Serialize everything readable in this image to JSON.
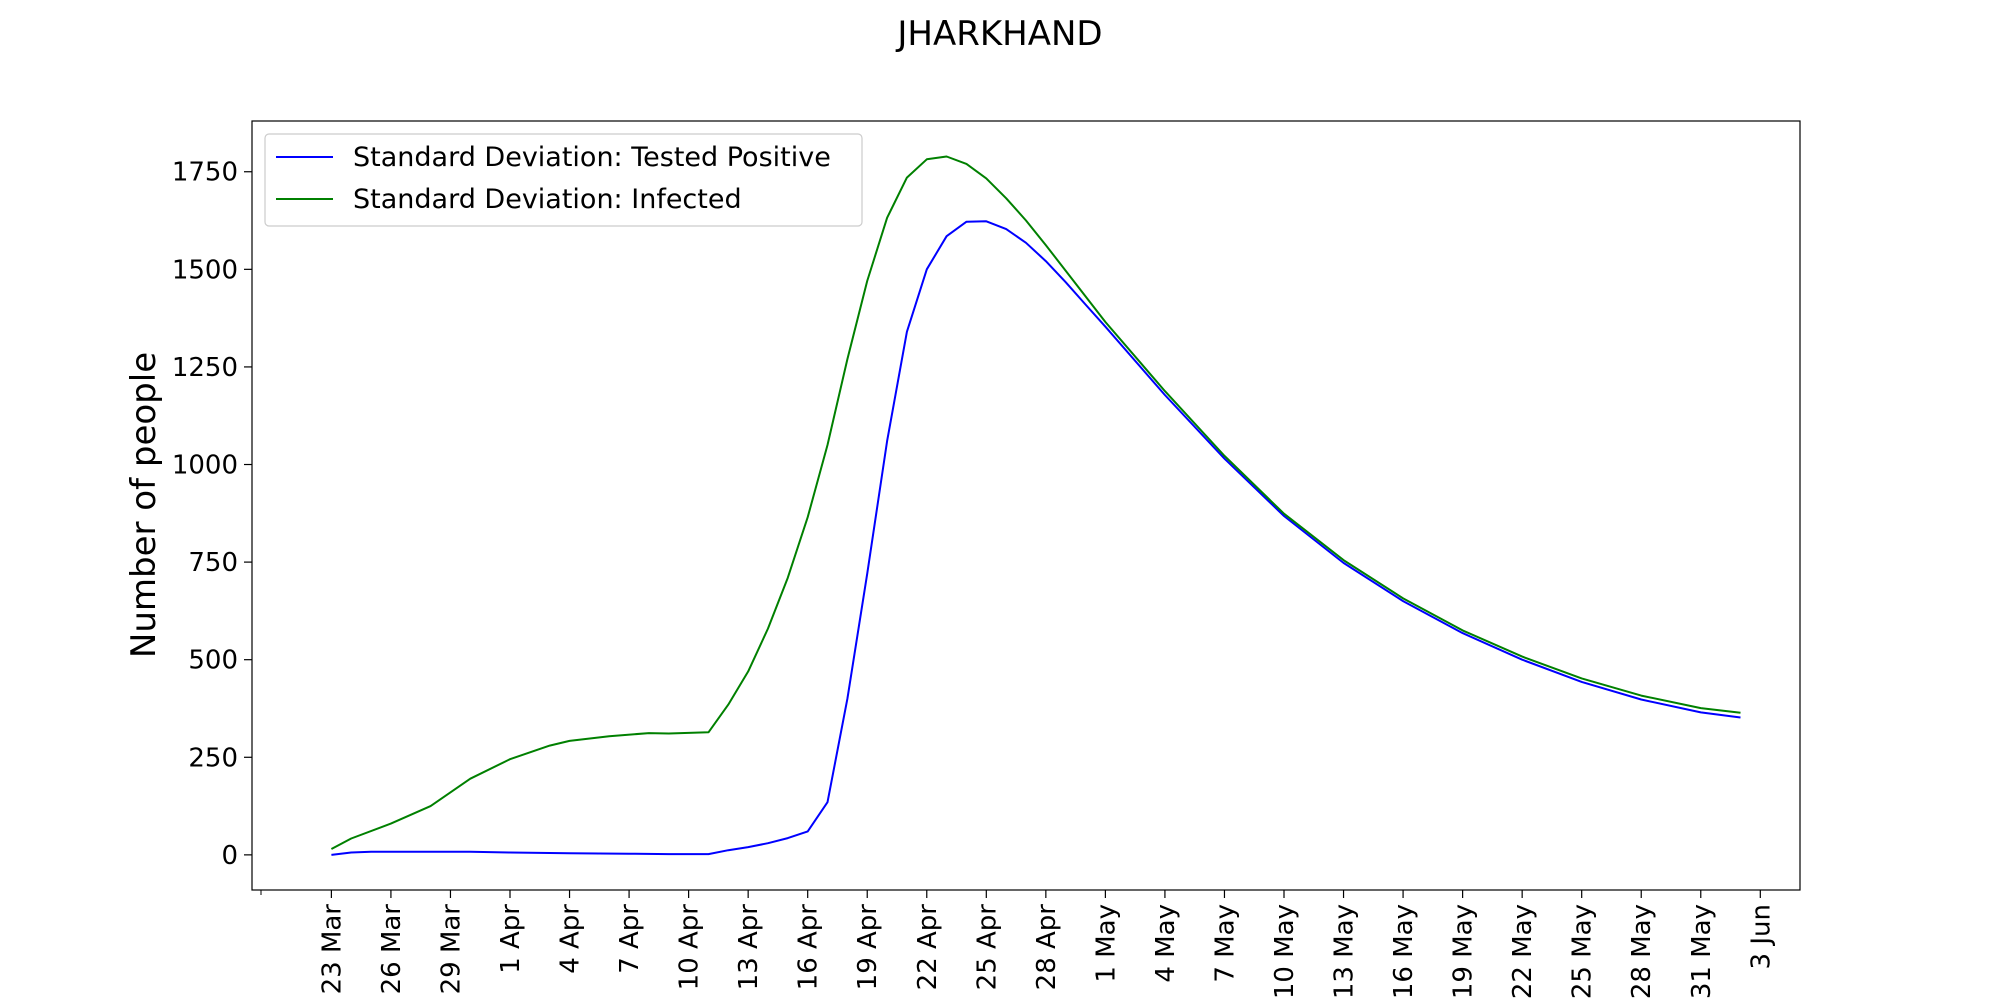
{
  "chart_data": {
    "type": "line",
    "title": "JHARKHAND",
    "xlabel": "",
    "ylabel": "Number of people",
    "ylim": [
      -90,
      1880
    ],
    "xlim": [
      "2020-03-19",
      "2020-06-05"
    ],
    "grid": false,
    "legend_position": "upper-left",
    "y_ticks": [
      0,
      250,
      500,
      750,
      1000,
      1250,
      1500,
      1750
    ],
    "x_ticks": [
      {
        "date": "2020-03-23",
        "label": "23 Mar"
      },
      {
        "date": "2020-03-26",
        "label": "26 Mar"
      },
      {
        "date": "2020-03-29",
        "label": "29 Mar"
      },
      {
        "date": "2020-04-01",
        "label": "1 Apr"
      },
      {
        "date": "2020-04-04",
        "label": "4 Apr"
      },
      {
        "date": "2020-04-07",
        "label": "7 Apr"
      },
      {
        "date": "2020-04-10",
        "label": "10 Apr"
      },
      {
        "date": "2020-04-13",
        "label": "13 Apr"
      },
      {
        "date": "2020-04-16",
        "label": "16 Apr"
      },
      {
        "date": "2020-04-19",
        "label": "19 Apr"
      },
      {
        "date": "2020-04-22",
        "label": "22 Apr"
      },
      {
        "date": "2020-04-25",
        "label": "25 Apr"
      },
      {
        "date": "2020-04-28",
        "label": "28 Apr"
      },
      {
        "date": "2020-05-01",
        "label": "1 May"
      },
      {
        "date": "2020-05-04",
        "label": "4 May"
      },
      {
        "date": "2020-05-07",
        "label": "7 May"
      },
      {
        "date": "2020-05-10",
        "label": "10 May"
      },
      {
        "date": "2020-05-13",
        "label": "13 May"
      },
      {
        "date": "2020-05-16",
        "label": "16 May"
      },
      {
        "date": "2020-05-19",
        "label": "19 May"
      },
      {
        "date": "2020-05-22",
        "label": "22 May"
      },
      {
        "date": "2020-05-25",
        "label": "25 May"
      },
      {
        "date": "2020-05-28",
        "label": "28 May"
      },
      {
        "date": "2020-05-31",
        "label": "31 May"
      },
      {
        "date": "2020-06-03",
        "label": "3 Jun"
      }
    ],
    "series": [
      {
        "name": "Standard Deviation: Tested Positive",
        "color": "#0000ff",
        "points": [
          [
            "2020-03-23",
            0
          ],
          [
            "2020-03-24",
            6
          ],
          [
            "2020-03-25",
            8
          ],
          [
            "2020-03-27",
            8
          ],
          [
            "2020-03-30",
            8
          ],
          [
            "2020-04-01",
            6
          ],
          [
            "2020-04-04",
            4
          ],
          [
            "2020-04-07",
            3
          ],
          [
            "2020-04-09",
            2
          ],
          [
            "2020-04-11",
            2
          ],
          [
            "2020-04-12",
            12
          ],
          [
            "2020-04-13",
            20
          ],
          [
            "2020-04-14",
            30
          ],
          [
            "2020-04-15",
            43
          ],
          [
            "2020-04-16",
            60
          ],
          [
            "2020-04-17",
            135
          ],
          [
            "2020-04-18",
            400
          ],
          [
            "2020-04-19",
            720
          ],
          [
            "2020-04-20",
            1060
          ],
          [
            "2020-04-21",
            1340
          ],
          [
            "2020-04-22",
            1500
          ],
          [
            "2020-04-23",
            1585
          ],
          [
            "2020-04-24",
            1622
          ],
          [
            "2020-04-25",
            1623
          ],
          [
            "2020-04-26",
            1603
          ],
          [
            "2020-04-27",
            1568
          ],
          [
            "2020-04-28",
            1521
          ],
          [
            "2020-04-29",
            1467
          ],
          [
            "2020-04-30",
            1410
          ],
          [
            "2020-05-01",
            1353
          ],
          [
            "2020-05-04",
            1178
          ],
          [
            "2020-05-07",
            1015
          ],
          [
            "2020-05-10",
            868
          ],
          [
            "2020-05-13",
            748
          ],
          [
            "2020-05-16",
            650
          ],
          [
            "2020-05-19",
            568
          ],
          [
            "2020-05-22",
            500
          ],
          [
            "2020-05-25",
            443
          ],
          [
            "2020-05-28",
            398
          ],
          [
            "2020-05-31",
            365
          ],
          [
            "2020-06-02",
            352
          ]
        ]
      },
      {
        "name": "Standard Deviation: Infected",
        "color": "#008000",
        "points": [
          [
            "2020-03-23",
            15
          ],
          [
            "2020-03-24",
            42
          ],
          [
            "2020-03-26",
            80
          ],
          [
            "2020-03-28",
            125
          ],
          [
            "2020-03-30",
            195
          ],
          [
            "2020-04-01",
            245
          ],
          [
            "2020-04-03",
            280
          ],
          [
            "2020-04-04",
            292
          ],
          [
            "2020-04-06",
            304
          ],
          [
            "2020-04-08",
            312
          ],
          [
            "2020-04-09",
            311
          ],
          [
            "2020-04-11",
            314
          ],
          [
            "2020-04-12",
            385
          ],
          [
            "2020-04-13",
            470
          ],
          [
            "2020-04-14",
            580
          ],
          [
            "2020-04-15",
            710
          ],
          [
            "2020-04-16",
            865
          ],
          [
            "2020-04-17",
            1050
          ],
          [
            "2020-04-18",
            1270
          ],
          [
            "2020-04-19",
            1470
          ],
          [
            "2020-04-20",
            1632
          ],
          [
            "2020-04-21",
            1735
          ],
          [
            "2020-04-22",
            1782
          ],
          [
            "2020-04-23",
            1789
          ],
          [
            "2020-04-24",
            1770
          ],
          [
            "2020-04-25",
            1733
          ],
          [
            "2020-04-26",
            1682
          ],
          [
            "2020-04-27",
            1625
          ],
          [
            "2020-04-28",
            1562
          ],
          [
            "2020-05-01",
            1365
          ],
          [
            "2020-05-04",
            1188
          ],
          [
            "2020-05-07",
            1022
          ],
          [
            "2020-05-10",
            874
          ],
          [
            "2020-05-13",
            755
          ],
          [
            "2020-05-16",
            657
          ],
          [
            "2020-05-19",
            575
          ],
          [
            "2020-05-22",
            508
          ],
          [
            "2020-05-25",
            452
          ],
          [
            "2020-05-28",
            408
          ],
          [
            "2020-05-31",
            376
          ],
          [
            "2020-06-02",
            364
          ]
        ]
      }
    ]
  }
}
